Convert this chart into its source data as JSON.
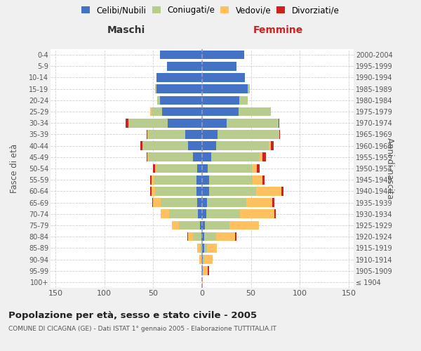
{
  "age_groups": [
    "100+",
    "95-99",
    "90-94",
    "85-89",
    "80-84",
    "75-79",
    "70-74",
    "65-69",
    "60-64",
    "55-59",
    "50-54",
    "45-49",
    "40-44",
    "35-39",
    "30-34",
    "25-29",
    "20-24",
    "15-19",
    "10-14",
    "5-9",
    "0-4"
  ],
  "birth_years": [
    "≤ 1904",
    "1905-1909",
    "1910-1914",
    "1915-1919",
    "1920-1924",
    "1925-1929",
    "1930-1934",
    "1935-1939",
    "1940-1944",
    "1945-1949",
    "1950-1954",
    "1955-1959",
    "1960-1964",
    "1965-1969",
    "1970-1974",
    "1975-1979",
    "1980-1984",
    "1985-1989",
    "1990-1994",
    "1995-1999",
    "2000-2004"
  ],
  "maschi": {
    "celibe": [
      0,
      0,
      0,
      0,
      1,
      2,
      4,
      5,
      6,
      6,
      5,
      9,
      14,
      17,
      35,
      41,
      43,
      47,
      47,
      36,
      43
    ],
    "coniugato": [
      0,
      0,
      1,
      2,
      8,
      22,
      30,
      37,
      42,
      43,
      42,
      46,
      47,
      38,
      40,
      11,
      3,
      1,
      0,
      0,
      0
    ],
    "vedovo": [
      0,
      1,
      2,
      3,
      5,
      7,
      8,
      8,
      4,
      3,
      1,
      1,
      0,
      1,
      0,
      1,
      0,
      0,
      0,
      0,
      0
    ],
    "divorziato": [
      0,
      0,
      0,
      0,
      1,
      0,
      0,
      1,
      1,
      1,
      2,
      1,
      2,
      1,
      3,
      0,
      0,
      0,
      0,
      0,
      0
    ]
  },
  "femmine": {
    "nubile": [
      0,
      1,
      1,
      2,
      2,
      3,
      4,
      5,
      7,
      7,
      6,
      9,
      14,
      16,
      25,
      37,
      38,
      47,
      44,
      35,
      43
    ],
    "coniugata": [
      0,
      0,
      1,
      3,
      12,
      25,
      35,
      40,
      48,
      45,
      45,
      50,
      54,
      62,
      53,
      33,
      9,
      2,
      0,
      0,
      0
    ],
    "vedova": [
      1,
      5,
      9,
      10,
      20,
      30,
      35,
      27,
      26,
      10,
      5,
      3,
      2,
      1,
      0,
      0,
      0,
      0,
      0,
      0,
      0
    ],
    "divorziata": [
      0,
      1,
      0,
      0,
      1,
      0,
      1,
      2,
      2,
      2,
      3,
      3,
      3,
      1,
      1,
      0,
      0,
      0,
      0,
      0,
      0
    ]
  },
  "colors": {
    "celibe": "#4472c4",
    "coniugato": "#b8cc8e",
    "vedovo": "#ffc060",
    "divorziato": "#cc2222"
  },
  "xlim": 155,
  "title": "Popolazione per età, sesso e stato civile - 2005",
  "subtitle": "COMUNE DI CICAGNA (GE) - Dati ISTAT 1° gennaio 2005 - Elaborazione TUTTITALIA.IT",
  "xlabel_left": "Maschi",
  "xlabel_right": "Femmine",
  "ylabel_left": "Fasce di età",
  "ylabel_right": "Anni di nascita",
  "legend_labels": [
    "Celibi/Nubili",
    "Coniugati/e",
    "Vedovi/e",
    "Divorziati/e"
  ],
  "bg_color": "#f0f0f0",
  "plot_bg": "#ffffff",
  "grid_color": "#cccccc"
}
